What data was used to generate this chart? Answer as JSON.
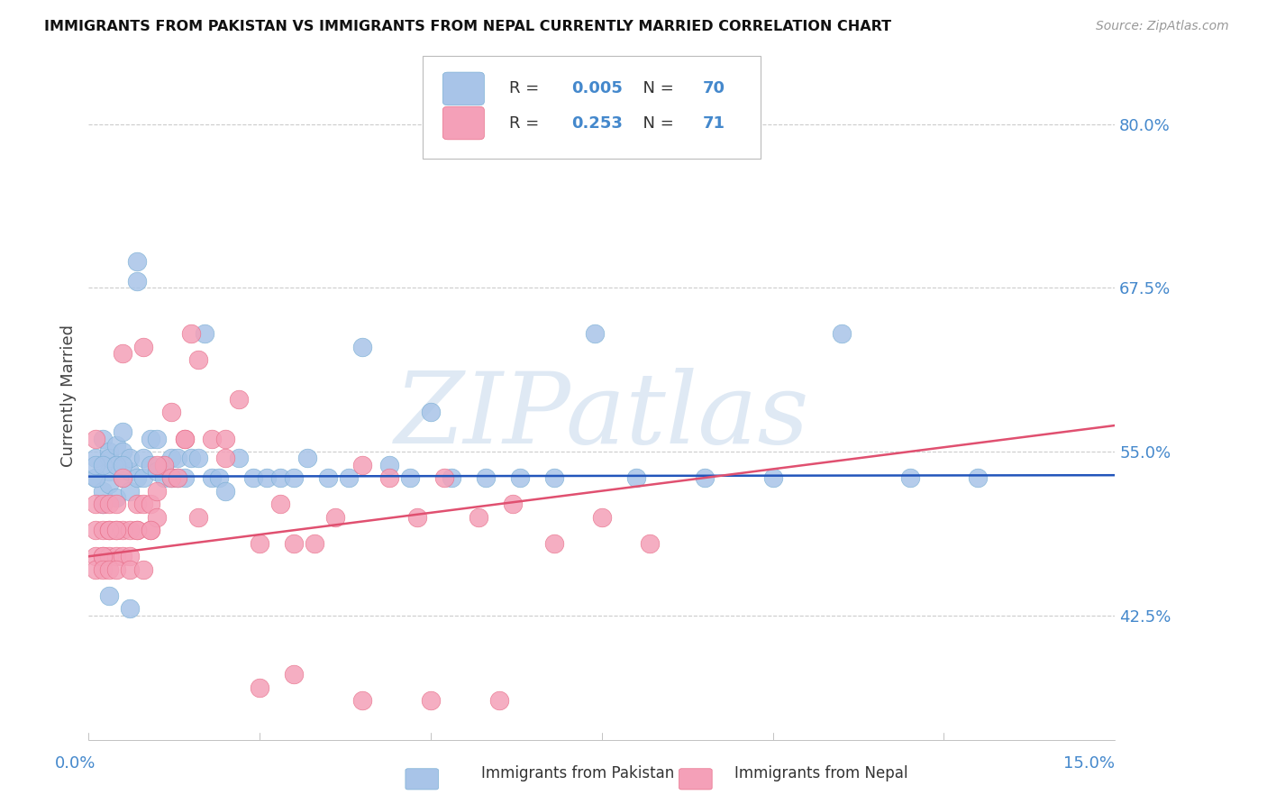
{
  "title": "IMMIGRANTS FROM PAKISTAN VS IMMIGRANTS FROM NEPAL CURRENTLY MARRIED CORRELATION CHART",
  "source": "Source: ZipAtlas.com",
  "ylabel": "Currently Married",
  "yticks": [
    0.425,
    0.55,
    0.675,
    0.8
  ],
  "ytick_labels": [
    "42.5%",
    "55.0%",
    "67.5%",
    "80.0%"
  ],
  "xlim": [
    0.0,
    0.15
  ],
  "ylim": [
    0.33,
    0.855
  ],
  "legend_label_pakistan": "Immigrants from Pakistan",
  "legend_label_nepal": "Immigrants from Nepal",
  "pakistan_color": "#a8c4e8",
  "nepal_color": "#f4a0b8",
  "pakistan_edge_color": "#7bafd4",
  "nepal_edge_color": "#e8708a",
  "pakistan_line_color": "#2255bb",
  "nepal_line_color": "#e05070",
  "watermark": "ZIPatlas",
  "background_color": "#ffffff",
  "pakistan_R": 0.005,
  "pakistan_N": 70,
  "nepal_R": 0.253,
  "nepal_N": 71,
  "pakistan_line_y": [
    0.531,
    0.532
  ],
  "nepal_line_y": [
    0.47,
    0.57
  ],
  "tick_color": "#4488cc",
  "grid_color": "#cccccc",
  "pakistan_x": [
    0.001,
    0.001,
    0.002,
    0.002,
    0.002,
    0.003,
    0.003,
    0.003,
    0.003,
    0.004,
    0.004,
    0.004,
    0.005,
    0.005,
    0.005,
    0.006,
    0.006,
    0.006,
    0.007,
    0.007,
    0.007,
    0.008,
    0.008,
    0.009,
    0.009,
    0.01,
    0.01,
    0.011,
    0.011,
    0.012,
    0.012,
    0.013,
    0.013,
    0.014,
    0.015,
    0.016,
    0.017,
    0.018,
    0.019,
    0.02,
    0.022,
    0.024,
    0.026,
    0.028,
    0.03,
    0.032,
    0.035,
    0.038,
    0.04,
    0.044,
    0.047,
    0.05,
    0.053,
    0.058,
    0.063,
    0.068,
    0.074,
    0.08,
    0.09,
    0.1,
    0.11,
    0.12,
    0.13,
    0.001,
    0.001,
    0.002,
    0.003,
    0.004,
    0.005,
    0.006
  ],
  "pakistan_y": [
    0.53,
    0.545,
    0.51,
    0.52,
    0.56,
    0.535,
    0.55,
    0.525,
    0.545,
    0.515,
    0.54,
    0.555,
    0.53,
    0.55,
    0.565,
    0.535,
    0.545,
    0.52,
    0.68,
    0.695,
    0.53,
    0.53,
    0.545,
    0.54,
    0.56,
    0.535,
    0.56,
    0.54,
    0.53,
    0.53,
    0.545,
    0.53,
    0.545,
    0.53,
    0.545,
    0.545,
    0.64,
    0.53,
    0.53,
    0.52,
    0.545,
    0.53,
    0.53,
    0.53,
    0.53,
    0.545,
    0.53,
    0.53,
    0.63,
    0.54,
    0.53,
    0.58,
    0.53,
    0.53,
    0.53,
    0.53,
    0.64,
    0.53,
    0.53,
    0.53,
    0.64,
    0.53,
    0.53,
    0.53,
    0.54,
    0.54,
    0.44,
    0.54,
    0.54,
    0.43
  ],
  "nepal_x": [
    0.001,
    0.001,
    0.001,
    0.002,
    0.002,
    0.002,
    0.003,
    0.003,
    0.003,
    0.004,
    0.004,
    0.004,
    0.005,
    0.005,
    0.005,
    0.006,
    0.006,
    0.007,
    0.007,
    0.008,
    0.008,
    0.009,
    0.009,
    0.01,
    0.01,
    0.011,
    0.012,
    0.013,
    0.014,
    0.015,
    0.016,
    0.018,
    0.02,
    0.022,
    0.025,
    0.028,
    0.03,
    0.033,
    0.036,
    0.04,
    0.044,
    0.048,
    0.052,
    0.057,
    0.062,
    0.068,
    0.075,
    0.082,
    0.001,
    0.001,
    0.002,
    0.002,
    0.003,
    0.003,
    0.004,
    0.004,
    0.005,
    0.006,
    0.007,
    0.008,
    0.009,
    0.01,
    0.012,
    0.014,
    0.016,
    0.02,
    0.025,
    0.03,
    0.04,
    0.05,
    0.06
  ],
  "nepal_y": [
    0.51,
    0.49,
    0.47,
    0.51,
    0.49,
    0.47,
    0.51,
    0.49,
    0.47,
    0.51,
    0.49,
    0.47,
    0.625,
    0.49,
    0.47,
    0.49,
    0.47,
    0.51,
    0.49,
    0.51,
    0.63,
    0.51,
    0.49,
    0.52,
    0.5,
    0.54,
    0.53,
    0.53,
    0.56,
    0.64,
    0.62,
    0.56,
    0.545,
    0.59,
    0.48,
    0.51,
    0.48,
    0.48,
    0.5,
    0.54,
    0.53,
    0.5,
    0.53,
    0.5,
    0.51,
    0.48,
    0.5,
    0.48,
    0.56,
    0.46,
    0.47,
    0.46,
    0.49,
    0.46,
    0.49,
    0.46,
    0.53,
    0.46,
    0.49,
    0.46,
    0.49,
    0.54,
    0.58,
    0.56,
    0.5,
    0.56,
    0.37,
    0.38,
    0.36,
    0.36,
    0.36
  ]
}
